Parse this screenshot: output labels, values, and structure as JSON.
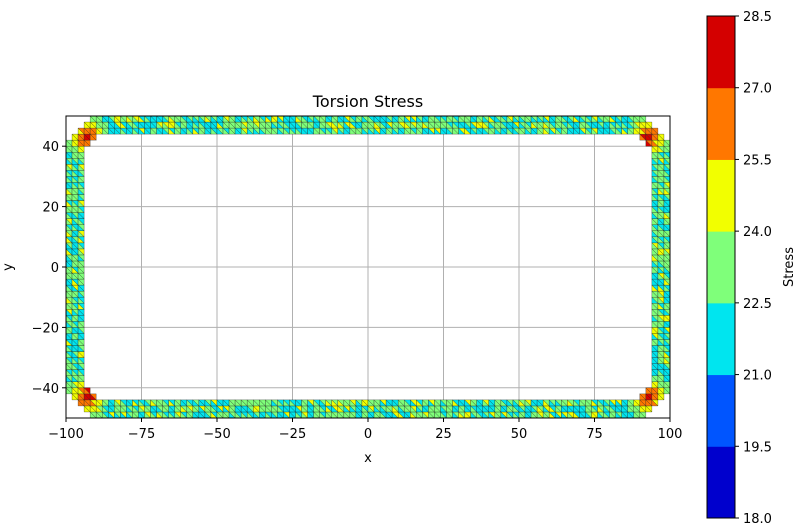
{
  "chart_data": {
    "type": "heatmap",
    "title": "Torsion Stress",
    "xlabel": "x",
    "ylabel": "y",
    "xlim": [
      -100,
      100
    ],
    "ylim": [
      -50,
      50
    ],
    "xticks": [
      -100,
      -75,
      -50,
      -25,
      0,
      25,
      50,
      75,
      100
    ],
    "yticks": [
      -40,
      -20,
      0,
      20,
      40
    ],
    "xtick_labels": [
      "−100",
      "−75",
      "−50",
      "−25",
      "0",
      "25",
      "50",
      "75",
      "100"
    ],
    "ytick_labels": [
      "−40",
      "−20",
      "0",
      "20",
      "40"
    ],
    "grid": true,
    "shape": {
      "description_kind": "rounded-rectangle hollow section",
      "outer_half_width": 100,
      "outer_half_height": 50,
      "outer_corner_radius": 15,
      "inner_half_width": 95,
      "inner_half_height": 45,
      "inner_corner_radius": 10
    },
    "colorbar": {
      "label": "Stress",
      "levels": [
        18.0,
        19.5,
        21.0,
        22.5,
        24.0,
        25.5,
        27.0,
        28.5
      ],
      "level_labels": [
        "18.0",
        "19.5",
        "21.0",
        "22.5",
        "24.0",
        "25.5",
        "27.0",
        "28.5"
      ],
      "colors": [
        "#0000cd",
        "#0055ff",
        "#00e5ef",
        "#7fff7a",
        "#f2ff00",
        "#ff7700",
        "#d40000"
      ]
    }
  }
}
